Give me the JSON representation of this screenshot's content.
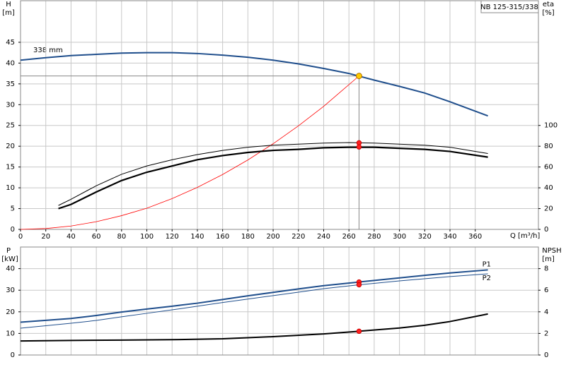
{
  "chart_data": [
    {
      "type": "line",
      "title": "NB 125-315/338",
      "y_label": "H",
      "y_unit": "[m]",
      "y2_label": "eta",
      "y2_unit": "[%]",
      "x_label": "Q [m³/h]",
      "annotation": "338 mm",
      "xlim": [
        0,
        410
      ],
      "xticks": [
        0,
        20,
        40,
        60,
        80,
        100,
        120,
        140,
        160,
        180,
        200,
        220,
        240,
        260,
        280,
        300,
        320,
        340,
        360
      ],
      "ylim": [
        0,
        55
      ],
      "yticks": [
        0,
        5,
        10,
        15,
        20,
        25,
        30,
        35,
        40,
        45
      ],
      "y2lim": [
        0,
        220
      ],
      "y2ticks": [
        0,
        20,
        40,
        60,
        80,
        100
      ],
      "grid": true,
      "series": [
        {
          "color": "#1f4e8c",
          "width": 2,
          "x": [
            0,
            20,
            40,
            60,
            80,
            100,
            120,
            140,
            160,
            180,
            200,
            220,
            240,
            260,
            280,
            300,
            320,
            340,
            370
          ],
          "values": [
            40.7,
            41.3,
            41.8,
            42.1,
            42.4,
            42.5,
            42.5,
            42.3,
            41.9,
            41.4,
            40.7,
            39.8,
            38.7,
            37.5,
            35.9,
            34.4,
            32.8,
            30.7,
            27.3
          ]
        },
        {
          "color": "#ff0000",
          "width": 0.8,
          "x": [
            0,
            20,
            40,
            60,
            80,
            100,
            120,
            140,
            160,
            180,
            200,
            220,
            240,
            268
          ],
          "values": [
            0,
            0.2,
            0.8,
            1.85,
            3.3,
            5.1,
            7.4,
            10.1,
            13.2,
            16.7,
            20.6,
            24.9,
            29.6,
            36.9
          ]
        },
        {
          "color": "#000000",
          "width": 1,
          "axis": "y2",
          "x": [
            30,
            40,
            60,
            80,
            100,
            120,
            140,
            160,
            180,
            200,
            220,
            240,
            260,
            280,
            300,
            320,
            340,
            370
          ],
          "values": [
            23,
            29,
            42,
            53,
            61,
            67,
            72,
            76,
            79,
            81,
            82,
            83,
            83.5,
            83,
            82,
            81,
            79,
            73
          ]
        },
        {
          "color": "#000000",
          "width": 2.2,
          "axis": "y2",
          "x": [
            30,
            40,
            60,
            80,
            100,
            120,
            140,
            160,
            180,
            200,
            220,
            240,
            260,
            280,
            300,
            320,
            340,
            370
          ],
          "values": [
            20,
            24,
            36,
            47,
            55,
            61,
            67,
            71,
            74,
            76,
            77,
            78.5,
            79,
            79,
            78,
            77,
            75,
            69.5
          ]
        }
      ],
      "operating_point": {
        "x": 268,
        "y": 36.9,
        "y2": [
          83.3,
          79.3
        ]
      }
    },
    {
      "type": "line",
      "y_label": "P",
      "y_unit": "[kW]",
      "y2_label": "NPSH",
      "y2_unit": "[m]",
      "ylim": [
        0,
        50
      ],
      "yticks": [
        0,
        10,
        20,
        30,
        40
      ],
      "y2lim": [
        0,
        10
      ],
      "y2ticks": [
        0,
        2,
        4,
        6,
        8
      ],
      "grid": true,
      "series": [
        {
          "name": "P1",
          "color": "#1f4e8c",
          "width": 2,
          "x": [
            0,
            40,
            60,
            80,
            100,
            120,
            140,
            160,
            180,
            200,
            220,
            240,
            268,
            300,
            320,
            340,
            370
          ],
          "values": [
            15.2,
            16.9,
            18.3,
            19.9,
            21.3,
            22.6,
            24.0,
            25.7,
            27.4,
            29.0,
            30.6,
            32.1,
            33.8,
            35.7,
            36.9,
            38.0,
            39.4
          ]
        },
        {
          "name": "P2",
          "color": "#1f4e8c",
          "width": 1,
          "x": [
            0,
            40,
            60,
            80,
            100,
            120,
            140,
            160,
            180,
            200,
            220,
            240,
            268,
            300,
            340,
            370
          ],
          "values": [
            12.4,
            14.7,
            16.0,
            17.7,
            19.3,
            20.9,
            22.6,
            24.3,
            25.9,
            27.5,
            29.1,
            30.7,
            32.5,
            34.3,
            36.3,
            37.6
          ]
        },
        {
          "color": "#000000",
          "width": 2,
          "axis": "y2",
          "x": [
            0,
            40,
            80,
            120,
            160,
            200,
            240,
            268,
            300,
            320,
            340,
            370
          ],
          "values": [
            1.3,
            1.35,
            1.38,
            1.42,
            1.5,
            1.7,
            1.95,
            2.2,
            2.5,
            2.75,
            3.1,
            3.8
          ]
        }
      ],
      "operating_point": {
        "x": 268,
        "y": [
          33.8,
          32.5
        ],
        "y2": 2.2
      }
    }
  ]
}
